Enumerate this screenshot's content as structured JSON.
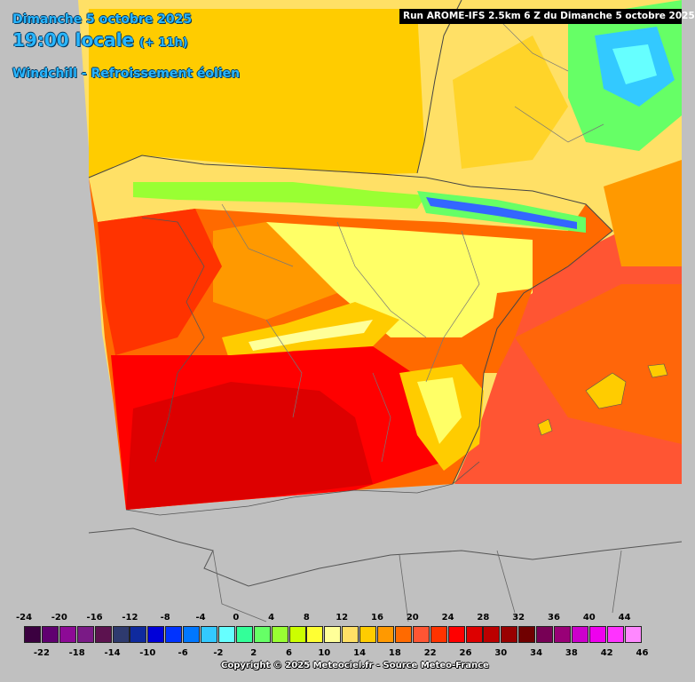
{
  "header": {
    "date": "Dimanche 5 octobre 2025",
    "time": "19:00 locale",
    "offset": "(+ 11h)",
    "parameter": "Windchill - Refroissement éolien",
    "run": "Run AROME-IFS 2.5km 6 Z du Dimanche 5 octobre 2025"
  },
  "legend": {
    "top_labels": [
      "-24",
      "-20",
      "-16",
      "-12",
      "-8",
      "-4",
      "0",
      "4",
      "8",
      "12",
      "16",
      "20",
      "24",
      "28",
      "32",
      "36",
      "40",
      "44"
    ],
    "bottom_labels": [
      "-22",
      "-18",
      "-14",
      "-10",
      "-6",
      "-2",
      "2",
      "6",
      "10",
      "14",
      "18",
      "22",
      "26",
      "30",
      "34",
      "38",
      "42",
      "46"
    ],
    "colors": [
      "#3b0040",
      "#600070",
      "#8d0a96",
      "#7a1a86",
      "#5c124f",
      "#2e3a6e",
      "#0f2a9e",
      "#0000d9",
      "#0033ff",
      "#0077ff",
      "#33c9ff",
      "#66ffff",
      "#33ff99",
      "#66ff66",
      "#99ff33",
      "#ccff00",
      "#ffff33",
      "#ffff99",
      "#ffe066",
      "#ffcc00",
      "#ff9900",
      "#ff6a00",
      "#ff5533",
      "#ff3300",
      "#ff0000",
      "#dd0000",
      "#bb0000",
      "#990000",
      "#700000",
      "#770055",
      "#990077",
      "#cc00cc",
      "#ee00ee",
      "#ff33ff",
      "#ff88ff"
    ]
  },
  "map_colors": {
    "sea": "#c0c0c0",
    "bay_of_biscay": "#ffcc00",
    "atlantic_warm": "#ffe066",
    "mediterranean": "#ff5533",
    "land_hot": "#ff0000",
    "land_very_hot": "#dd0000",
    "land_warm": "#ff6a00",
    "land_mild": "#ffcc00",
    "mountains_cool": "#ffff66",
    "pyrenees_green": "#66ff66",
    "pyrenees_cold": "#3366ff",
    "alps_cold": "#33c9ff"
  },
  "copyright": "Copyright © 2025 Meteociel.fr - Source Meteo-France"
}
